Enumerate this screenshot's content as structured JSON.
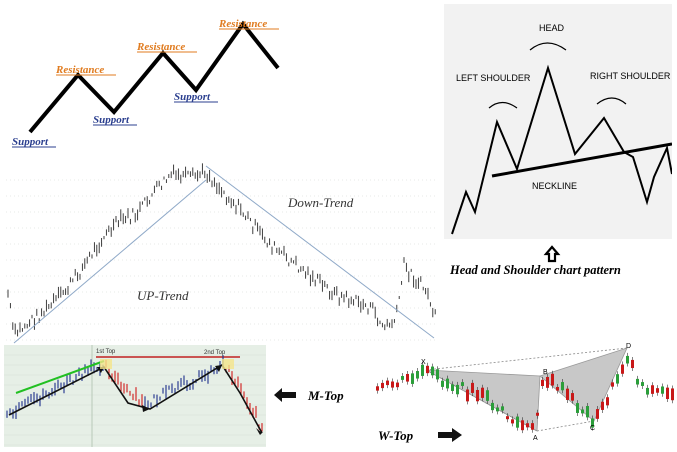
{
  "panels": {
    "support_resistance": {
      "chart_data": {
        "type": "line",
        "title": "",
        "labels": {
          "resistance": "Resistance",
          "support": "Support"
        },
        "colors": {
          "resistance": "#e07b1f",
          "support": "#2b3f8f",
          "line": "#000000"
        }
      }
    },
    "head_shoulders": {
      "chart_data": {
        "type": "line",
        "labels": {
          "head": "HEAD",
          "left_shoulder": "LEFT SHOULDER",
          "right_shoulder": "RIGHT SHOULDER",
          "neckline": "NECKLINE"
        }
      },
      "caption": "Head and Shoulder chart pattern",
      "arrow_icon": "up-arrow-icon"
    },
    "trend": {
      "chart_data": {
        "type": "line",
        "labels": {
          "up_trend": "UP-Trend",
          "down_trend": "Down-Trend"
        },
        "colors": {
          "price": "#2a2a2a",
          "trendline": "#8fa9c8"
        }
      }
    },
    "m_top": {
      "chart_data": {
        "type": "bar",
        "labels": {
          "first_top": "1st Top",
          "second_top": "2nd Top"
        },
        "colors": {
          "up": "#1d2f8a",
          "down": "#d01a1a",
          "green_line": "#22c022",
          "top_line": "#c02020",
          "background": "#e6efe6"
        }
      },
      "label": "M-Top",
      "arrow_icon": "left-arrow-icon"
    },
    "w_top": {
      "chart_data": {
        "type": "bar",
        "labels": {
          "x": "X",
          "a": "A",
          "b": "B",
          "c": "C",
          "d": "D"
        },
        "colors": {
          "up": "#2b9e3a",
          "down": "#c81818",
          "pattern_fill": "#c8c8c8"
        }
      },
      "label": "W-Top",
      "arrow_icon": "right-arrow-icon"
    }
  }
}
